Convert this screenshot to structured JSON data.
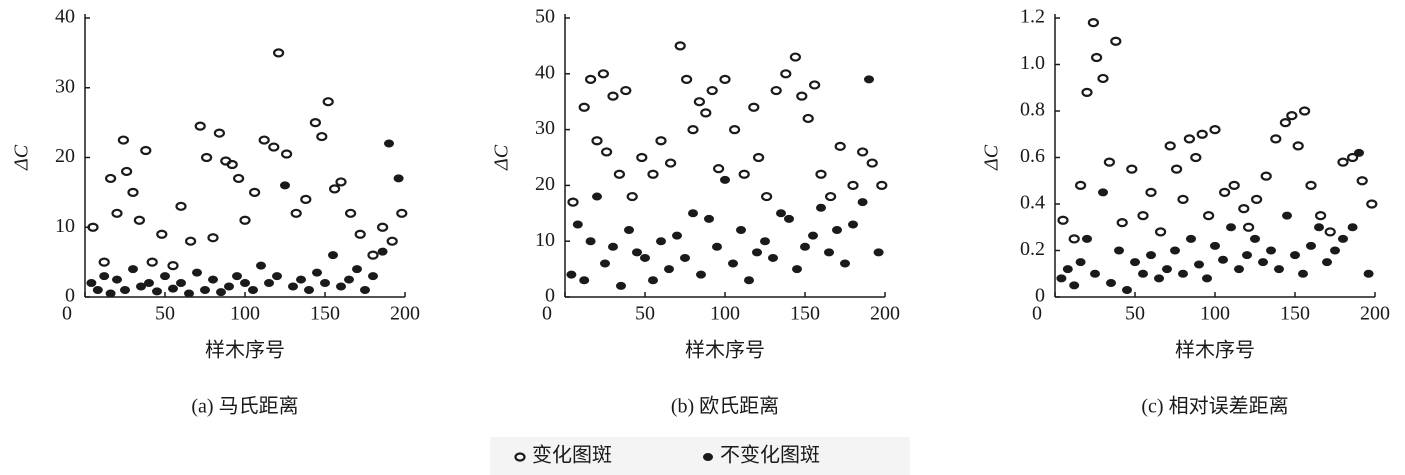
{
  "chart_data": [
    {
      "type": "scatter",
      "title": "(a) 马氏距离",
      "xlabel": "样木序号",
      "ylabel": "ΔC",
      "xlim": [
        0,
        200
      ],
      "xticks": [
        0,
        50,
        100,
        150,
        200
      ],
      "ylim": [
        0,
        40
      ],
      "yticks": [
        0,
        10,
        20,
        30,
        40
      ],
      "series": [
        {
          "name": "变化图斑",
          "color": "#1a1a1a",
          "marker": "open",
          "x": [
            5,
            12,
            16,
            20,
            24,
            26,
            30,
            34,
            38,
            42,
            48,
            55,
            60,
            66,
            72,
            76,
            80,
            84,
            88,
            92,
            96,
            100,
            106,
            112,
            118,
            121,
            126,
            132,
            138,
            144,
            148,
            152,
            156,
            160,
            166,
            172,
            180,
            186,
            192,
            198
          ],
          "values": [
            10,
            5,
            17,
            12,
            22.5,
            18,
            15,
            11,
            21,
            5,
            9,
            4.5,
            13,
            8,
            24.5,
            20,
            8.5,
            23.5,
            19.5,
            19,
            17,
            11,
            15,
            22.5,
            21.5,
            35,
            20.5,
            12,
            14,
            25,
            23,
            28,
            15.5,
            16.5,
            12,
            9,
            6,
            10,
            8,
            12
          ]
        },
        {
          "name": "不变化图斑",
          "color": "#1a1a1a",
          "marker": "filled",
          "x": [
            4,
            8,
            12,
            16,
            20,
            25,
            30,
            35,
            40,
            45,
            50,
            55,
            60,
            65,
            70,
            75,
            80,
            85,
            90,
            95,
            100,
            105,
            110,
            115,
            120,
            125,
            130,
            135,
            140,
            145,
            150,
            155,
            160,
            165,
            170,
            175,
            180,
            186,
            190,
            196
          ],
          "values": [
            2,
            1,
            3,
            0.5,
            2.5,
            1,
            4,
            1.5,
            2,
            0.8,
            3,
            1.2,
            2,
            0.5,
            3.5,
            1,
            2.5,
            0.7,
            1.5,
            3,
            2,
            1,
            4.5,
            2,
            3,
            16,
            1.5,
            2.5,
            1,
            3.5,
            2,
            6,
            1.5,
            2.5,
            4,
            1,
            3,
            6.5,
            22,
            17
          ]
        }
      ]
    },
    {
      "type": "scatter",
      "title": "(b) 欧氏距离",
      "xlabel": "样木序号",
      "ylabel": "ΔC",
      "xlim": [
        0,
        200
      ],
      "xticks": [
        0,
        50,
        100,
        150,
        200
      ],
      "ylim": [
        0,
        50
      ],
      "yticks": [
        0,
        10,
        20,
        30,
        40,
        50
      ],
      "series": [
        {
          "color": "#1a1a1a",
          "marker": "open",
          "x": [
            5,
            12,
            16,
            20,
            24,
            26,
            30,
            34,
            38,
            42,
            48,
            55,
            60,
            66,
            72,
            76,
            80,
            84,
            88,
            92,
            96,
            100,
            106,
            112,
            118,
            121,
            126,
            132,
            138,
            144,
            148,
            152,
            156,
            160,
            166,
            172,
            180,
            186,
            192,
            198
          ],
          "values": [
            17,
            34,
            39,
            28,
            40,
            26,
            36,
            22,
            37,
            18,
            25,
            22,
            28,
            24,
            45,
            39,
            30,
            35,
            33,
            37,
            23,
            39,
            30,
            22,
            34,
            25,
            18,
            37,
            40,
            43,
            36,
            32,
            38,
            22,
            18,
            27,
            20,
            26,
            24,
            20
          ]
        },
        {
          "color": "#1a1a1a",
          "marker": "filled",
          "x": [
            4,
            8,
            12,
            16,
            20,
            25,
            30,
            35,
            40,
            45,
            50,
            55,
            60,
            65,
            70,
            75,
            80,
            85,
            90,
            95,
            100,
            105,
            110,
            115,
            120,
            125,
            130,
            135,
            140,
            145,
            150,
            155,
            160,
            165,
            170,
            175,
            180,
            186,
            190,
            196
          ],
          "values": [
            4,
            13,
            3,
            10,
            18,
            6,
            9,
            2,
            12,
            8,
            7,
            3,
            10,
            5,
            11,
            7,
            15,
            4,
            14,
            9,
            21,
            6,
            12,
            3,
            8,
            10,
            7,
            15,
            14,
            5,
            9,
            11,
            16,
            8,
            12,
            6,
            13,
            17,
            39,
            8
          ]
        }
      ]
    },
    {
      "type": "scatter",
      "title": "(c) 相对误差距离",
      "xlabel": "样木序号",
      "ylabel": "ΔC",
      "xlim": [
        0,
        200
      ],
      "xticks": [
        0,
        50,
        100,
        150,
        200
      ],
      "ylim": [
        0,
        1.2
      ],
      "yticks": [
        0,
        0.2,
        0.4,
        0.6,
        0.8,
        {
          "value": 1,
          "label": "1.0"
        },
        1.2
      ],
      "series": [
        {
          "color": "#1a1a1a",
          "marker": "open",
          "x": [
            5,
            12,
            16,
            20,
            24,
            26,
            30,
            34,
            38,
            42,
            48,
            55,
            60,
            66,
            72,
            76,
            80,
            84,
            88,
            92,
            96,
            100,
            106,
            112,
            118,
            121,
            126,
            132,
            138,
            144,
            148,
            152,
            156,
            160,
            166,
            172,
            180,
            186,
            192,
            198
          ],
          "values": [
            0.33,
            0.25,
            0.48,
            0.88,
            1.18,
            1.03,
            0.94,
            0.58,
            1.1,
            0.32,
            0.55,
            0.35,
            0.45,
            0.28,
            0.65,
            0.55,
            0.42,
            0.68,
            0.6,
            0.7,
            0.35,
            0.72,
            0.45,
            0.48,
            0.38,
            0.3,
            0.42,
            0.52,
            0.68,
            0.75,
            0.78,
            0.65,
            0.8,
            0.48,
            0.35,
            0.28,
            0.58,
            0.6,
            0.5,
            0.4
          ]
        },
        {
          "color": "#1a1a1a",
          "marker": "filled",
          "x": [
            4,
            8,
            12,
            16,
            20,
            25,
            30,
            35,
            40,
            45,
            50,
            55,
            60,
            65,
            70,
            75,
            80,
            85,
            90,
            95,
            100,
            105,
            110,
            115,
            120,
            125,
            130,
            135,
            140,
            145,
            150,
            155,
            160,
            165,
            170,
            175,
            180,
            186,
            190,
            196
          ],
          "values": [
            0.08,
            0.12,
            0.05,
            0.15,
            0.25,
            0.1,
            0.45,
            0.06,
            0.2,
            0.03,
            0.15,
            0.1,
            0.18,
            0.08,
            0.12,
            0.2,
            0.1,
            0.25,
            0.14,
            0.08,
            0.22,
            0.16,
            0.3,
            0.12,
            0.18,
            0.25,
            0.15,
            0.2,
            0.12,
            0.35,
            0.18,
            0.1,
            0.22,
            0.3,
            0.15,
            0.2,
            0.25,
            0.3,
            0.62,
            0.1
          ]
        }
      ]
    }
  ]
}
